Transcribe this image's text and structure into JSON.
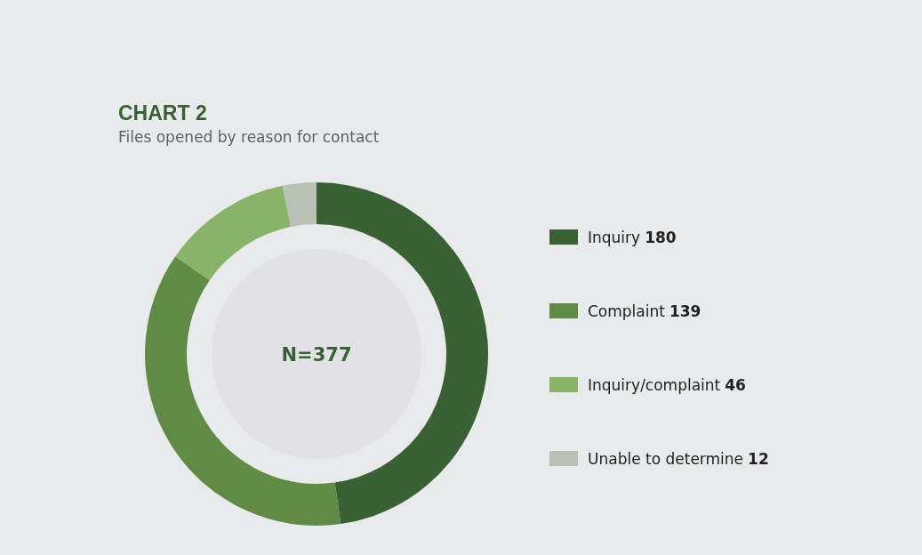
{
  "chart_data": {
    "type": "donut",
    "title": "CHART 2",
    "subtitle": "Files opened by reason for contact",
    "categories": [
      "Inquiry",
      "Complaint",
      "Inquiry/complaint",
      "Unable to determine"
    ],
    "values": [
      180,
      139,
      46,
      12
    ],
    "colors": [
      "#3a6133",
      "#618a47",
      "#88b369",
      "#b9c1b5"
    ],
    "annotations": [
      "N=377"
    ],
    "data_labels": true,
    "legend": "right"
  }
}
